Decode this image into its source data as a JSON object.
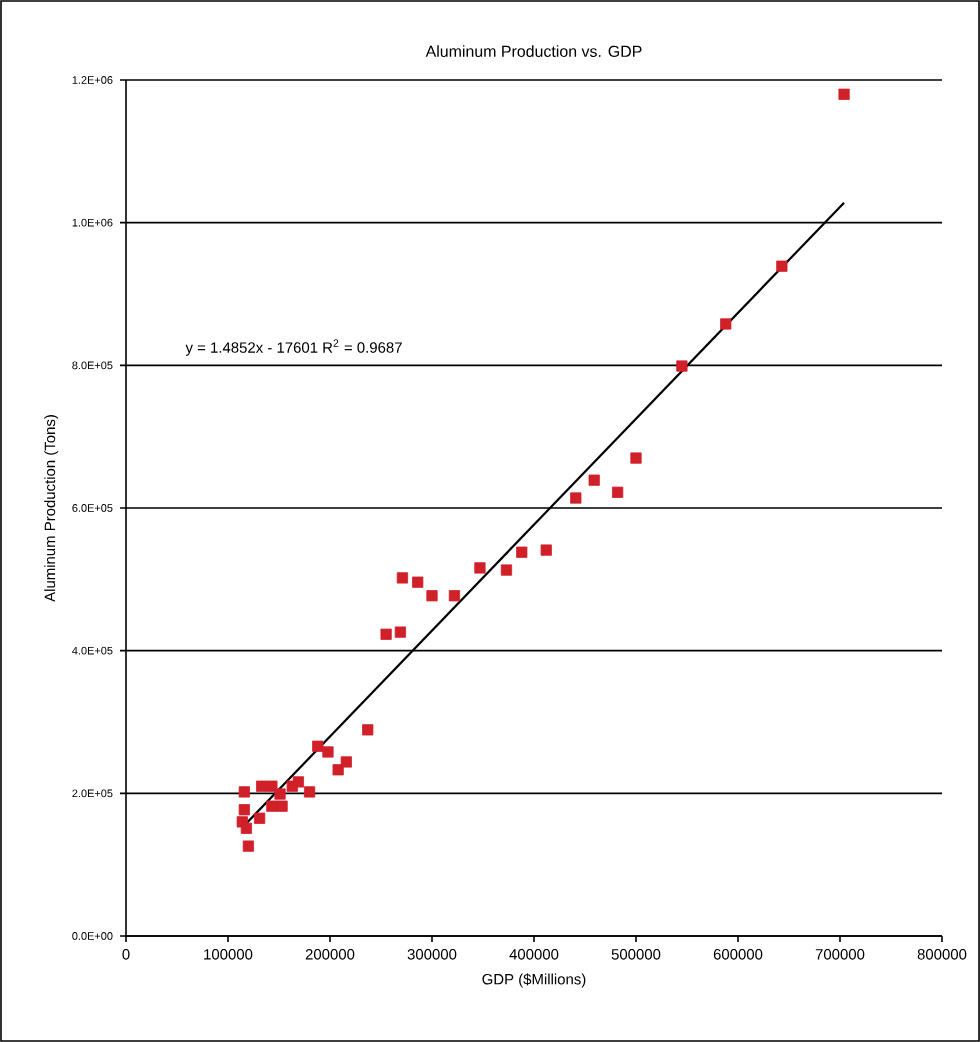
{
  "chart_data": {
    "type": "scatter",
    "title": "Aluminum Production vs. GDP",
    "xlabel": "GDP ($Millions)",
    "ylabel": "Aluminum Production (Tons)",
    "xlim": [
      0,
      800000
    ],
    "xticks": [
      0,
      100000,
      200000,
      300000,
      400000,
      500000,
      600000,
      700000,
      800000
    ],
    "ylim": [
      0,
      1200000
    ],
    "yticks": [
      {
        "value": 0,
        "label": "0.0E+00"
      },
      {
        "value": 200000,
        "label": "2.0E+05"
      },
      {
        "value": 400000,
        "label": "4.0E+05"
      },
      {
        "value": 600000,
        "label": "6.0E+05"
      },
      {
        "value": 800000,
        "label": "8.0E+05"
      },
      {
        "value": 1000000,
        "label": "1.0E+06"
      },
      {
        "value": 1200000,
        "label": "1.2E+06"
      }
    ],
    "grid": "y",
    "marker": "square",
    "series": [
      {
        "color": "#d0202a",
        "x": [
          116000,
          116000,
          114000,
          118000,
          120000,
          131000,
          133000,
          143000,
          143000,
          153000,
          151000,
          163000,
          169000,
          180000,
          188000,
          198000,
          208000,
          216000,
          237000,
          255000,
          269000,
          271000,
          286000,
          300000,
          322000,
          347000,
          373000,
          388000,
          412000,
          441000,
          459000,
          482000,
          500000,
          545000,
          588000,
          643000,
          704000
        ],
        "values": [
          202000,
          177000,
          160000,
          151000,
          126000,
          165000,
          210000,
          210000,
          182000,
          182000,
          199000,
          210000,
          216000,
          202000,
          266000,
          258000,
          233000,
          244000,
          289000,
          423000,
          426000,
          502000,
          496000,
          477000,
          477000,
          516000,
          513000,
          538000,
          541000,
          614000,
          639000,
          622000,
          670000,
          799000,
          858000,
          939000,
          1180000
        ]
      },
      {
        "type": "line",
        "color": "#000000",
        "marker": "none",
        "x": [
          114000,
          704000
        ],
        "values": [
          152000,
          1028000
        ]
      }
    ],
    "annotations": [
      "y = 1.4852x - 17601 R$^{2}$ = 0.9687"
    ]
  }
}
